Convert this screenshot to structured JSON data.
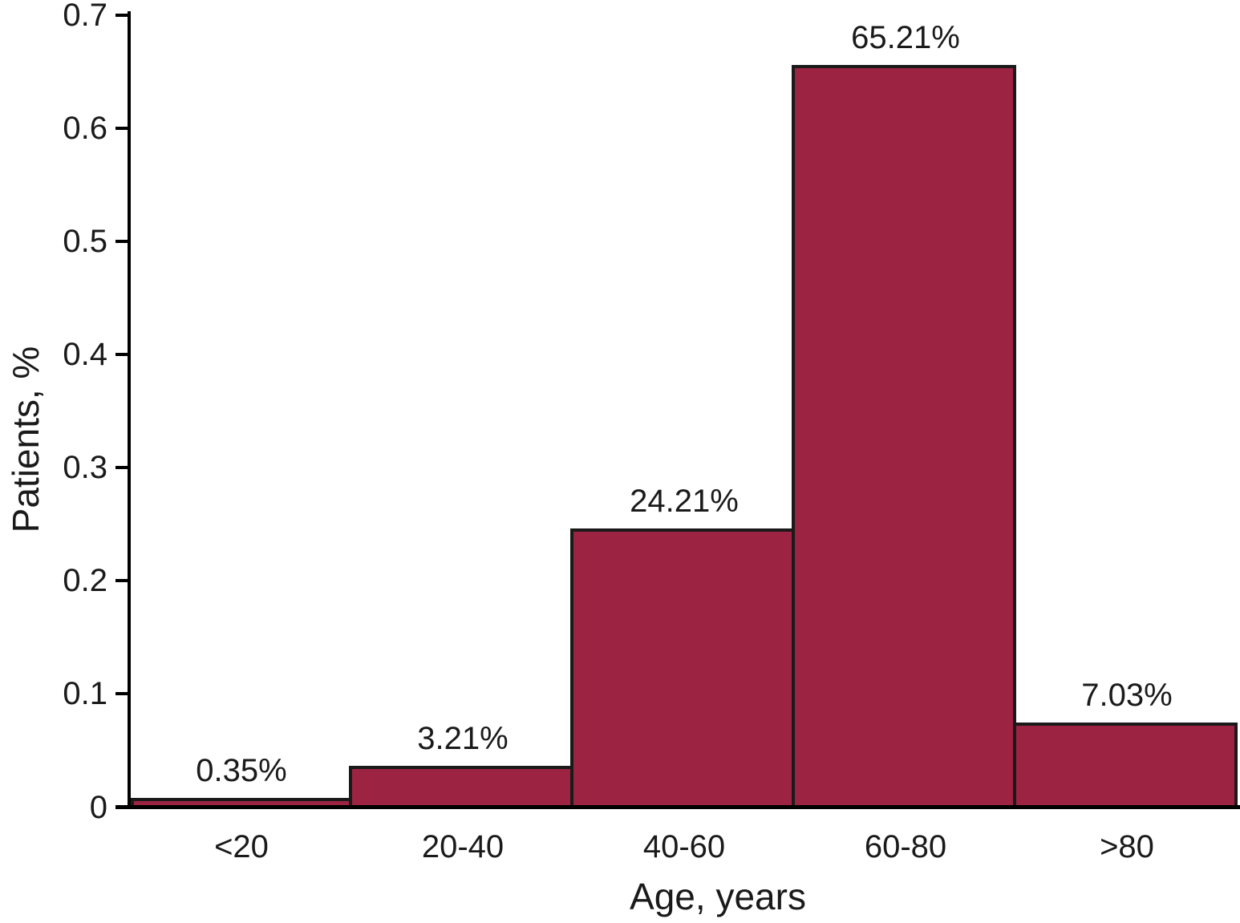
{
  "chart_data": {
    "type": "bar",
    "title": "",
    "categories": [
      "<20",
      "20-40",
      "40-60",
      "60-80",
      ">80"
    ],
    "values": [
      0.0035,
      0.0321,
      0.2421,
      0.6521,
      0.0703
    ],
    "bar_labels": [
      "0.35%",
      "3.21%",
      "24.21%",
      "65.21%",
      "7.03%"
    ],
    "xlabel": "Age, years",
    "ylabel": "Patients, %",
    "ylim": [
      0,
      0.7
    ],
    "ytick_interval": 0.1,
    "ytick_labels": [
      "0",
      "0.1",
      "0.2",
      "0.3",
      "0.4",
      "0.5",
      "0.6",
      "0.7"
    ],
    "grid": false,
    "legend": "none",
    "bar_color": "#9D2342",
    "bar_border_color": "#1a1a1a",
    "axis_color": "#000000",
    "text_color": "#1a1a1a"
  }
}
